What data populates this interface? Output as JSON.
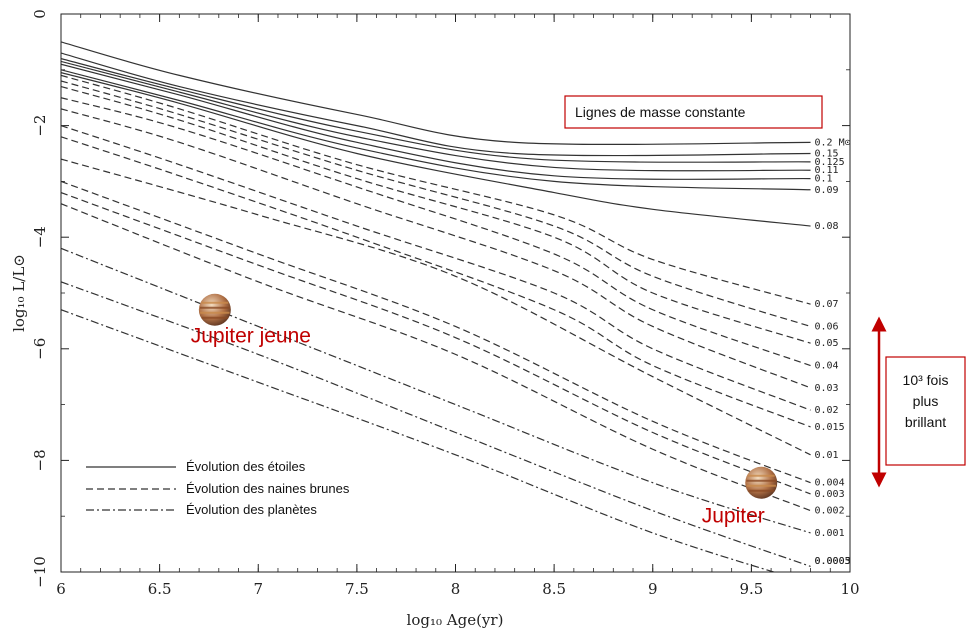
{
  "chart_data": {
    "type": "line",
    "title": "",
    "xlabel": "log₁₀ Age(yr)",
    "ylabel": "log₁₀ L/L⊙",
    "xlim": [
      6,
      10
    ],
    "ylim": [
      -10,
      0
    ],
    "x_ticks": [
      "6",
      "6.5",
      "7",
      "7.5",
      "8",
      "8.5",
      "9",
      "9.5",
      "10"
    ],
    "y_ticks": [
      "0",
      "−2",
      "−4",
      "−6",
      "−8",
      "−10"
    ],
    "legend": [
      {
        "label": "Évolution des étoiles",
        "style": "solid"
      },
      {
        "label": "Évolution des naines brunes",
        "style": "dashed"
      },
      {
        "label": "Évolution des planètes",
        "style": "dashdot"
      }
    ],
    "legend_position": "bottom-left",
    "series": [
      {
        "name": "0.2 M⊙",
        "style": "solid",
        "x": [
          6.0,
          6.6,
          7.5,
          8.3,
          9.8
        ],
        "y": [
          -0.5,
          -1.1,
          -1.8,
          -2.3,
          -2.3
        ]
      },
      {
        "name": "0.15",
        "style": "solid",
        "x": [
          6.0,
          6.6,
          7.5,
          8.3,
          9.8
        ],
        "y": [
          -0.7,
          -1.3,
          -2.0,
          -2.5,
          -2.5
        ]
      },
      {
        "name": "0.125",
        "style": "solid",
        "x": [
          6.0,
          6.6,
          7.5,
          8.4,
          9.8
        ],
        "y": [
          -0.8,
          -1.35,
          -2.1,
          -2.6,
          -2.65
        ]
      },
      {
        "name": "0.11",
        "style": "solid",
        "x": [
          6.0,
          6.6,
          7.5,
          8.5,
          9.8
        ],
        "y": [
          -0.85,
          -1.4,
          -2.2,
          -2.75,
          -2.8
        ]
      },
      {
        "name": "0.1",
        "style": "solid",
        "x": [
          6.0,
          6.6,
          7.5,
          8.5,
          9.8
        ],
        "y": [
          -0.9,
          -1.45,
          -2.3,
          -2.9,
          -2.95
        ]
      },
      {
        "name": "0.09",
        "style": "solid",
        "x": [
          6.0,
          6.6,
          7.5,
          8.5,
          9.8
        ],
        "y": [
          -1.0,
          -1.55,
          -2.4,
          -3.0,
          -3.15
        ]
      },
      {
        "name": "0.08",
        "style": "solid",
        "x": [
          6.0,
          6.6,
          7.5,
          8.5,
          9.0,
          9.8
        ],
        "y": [
          -1.05,
          -1.6,
          -2.5,
          -3.2,
          -3.5,
          -3.8
        ]
      },
      {
        "name": "0.07",
        "style": "dashed",
        "x": [
          6.0,
          6.6,
          7.5,
          8.5,
          9.0,
          9.8
        ],
        "y": [
          -1.1,
          -1.7,
          -2.7,
          -3.6,
          -4.4,
          -5.2
        ]
      },
      {
        "name": "0.06",
        "style": "dashed",
        "x": [
          6.0,
          6.6,
          7.5,
          8.5,
          9.0,
          9.8
        ],
        "y": [
          -1.2,
          -1.8,
          -2.8,
          -3.8,
          -4.7,
          -5.6
        ]
      },
      {
        "name": "0.05",
        "style": "dashed",
        "x": [
          6.0,
          6.6,
          7.5,
          8.5,
          9.0,
          9.8
        ],
        "y": [
          -1.3,
          -1.9,
          -2.95,
          -4.0,
          -5.0,
          -5.9
        ]
      },
      {
        "name": "0.04",
        "style": "dashed",
        "x": [
          6.0,
          6.6,
          7.5,
          8.5,
          9.0,
          9.8
        ],
        "y": [
          -1.5,
          -2.05,
          -3.1,
          -4.3,
          -5.3,
          -6.3
        ]
      },
      {
        "name": "0.03",
        "style": "dashed",
        "x": [
          6.0,
          6.6,
          7.5,
          8.5,
          9.0,
          9.8
        ],
        "y": [
          -1.7,
          -2.3,
          -3.4,
          -4.6,
          -5.6,
          -6.7
        ]
      },
      {
        "name": "0.02",
        "style": "dashed",
        "x": [
          6.0,
          6.6,
          7.5,
          8.5,
          9.0,
          9.8
        ],
        "y": [
          -2.0,
          -2.7,
          -3.8,
          -5.0,
          -6.0,
          -7.1
        ]
      },
      {
        "name": "0.015",
        "style": "dashed",
        "x": [
          6.0,
          6.6,
          7.5,
          8.5,
          9.0,
          9.8
        ],
        "y": [
          -2.2,
          -2.9,
          -4.0,
          -5.3,
          -6.3,
          -7.4
        ]
      },
      {
        "name": "0.01",
        "style": "dashed",
        "x": [
          6.0,
          7.0,
          8.0,
          9.0,
          9.8
        ],
        "y": [
          -2.6,
          -3.6,
          -4.7,
          -6.5,
          -7.9
        ]
      },
      {
        "name": "0.004",
        "style": "dashed",
        "x": [
          6.0,
          7.0,
          8.0,
          9.0,
          9.8
        ],
        "y": [
          -3.0,
          -4.3,
          -5.6,
          -7.3,
          -8.4
        ]
      },
      {
        "name": "0.003",
        "style": "dashed",
        "x": [
          6.0,
          7.0,
          8.0,
          9.0,
          9.8
        ],
        "y": [
          -3.2,
          -4.5,
          -5.8,
          -7.5,
          -8.6
        ]
      },
      {
        "name": "0.002",
        "style": "dashed",
        "x": [
          6.0,
          7.0,
          8.0,
          9.0,
          9.8
        ],
        "y": [
          -3.4,
          -4.8,
          -6.1,
          -7.8,
          -8.9
        ]
      },
      {
        "name": "0.001",
        "style": "dashdot",
        "x": [
          6.0,
          7.0,
          8.0,
          9.0,
          9.8
        ],
        "y": [
          -4.2,
          -5.6,
          -7.0,
          -8.4,
          -9.3
        ]
      },
      {
        "name": "0.0005",
        "style": "dashdot",
        "x": [
          6.0,
          7.0,
          8.0,
          9.0,
          9.8
        ],
        "y": [
          -4.8,
          -6.1,
          -7.5,
          -8.9,
          -9.9
        ]
      },
      {
        "name": "0.0003",
        "style": "dashdot",
        "x": [
          6.0,
          7.0,
          8.0,
          9.0,
          9.8
        ],
        "y": [
          -5.3,
          -6.6,
          -7.9,
          -9.3,
          -10.2
        ]
      }
    ],
    "annotations": {
      "box_title": "Lignes de masse constante",
      "young_jupiter": {
        "label": "Jupiter jeune",
        "x": 6.78,
        "y": -5.3
      },
      "jupiter": {
        "label": "Jupiter",
        "x": 9.55,
        "y": -8.4
      },
      "brightness_box": [
        "10³ fois",
        "plus",
        "brillant"
      ]
    },
    "colors": {
      "accent": "#c00000",
      "line": "#333333",
      "planet_band": "#c98a4b"
    }
  }
}
